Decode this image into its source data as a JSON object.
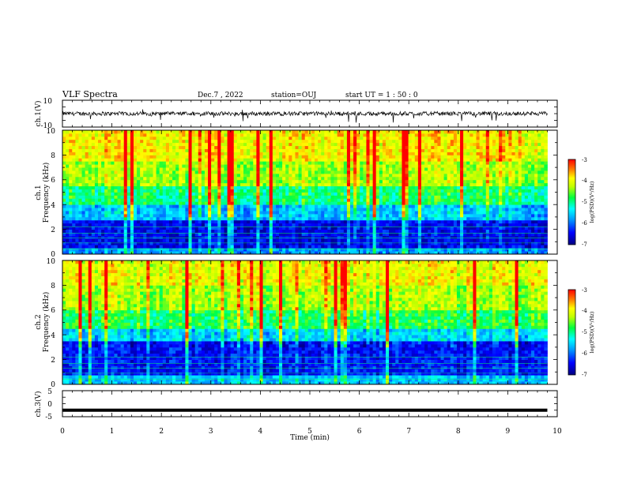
{
  "header": {
    "title": "VLF Spectra",
    "date": "Dec.7 , 2022",
    "station": "station=OUJ",
    "start_ut": "start  UT =   1 : 50 : 0"
  },
  "chart_data": [
    {
      "id": "ch1_waveform",
      "type": "line",
      "ylabel": "ch.1(V)",
      "ylim": [
        -10,
        10
      ],
      "yticks": [
        "10",
        "-10"
      ],
      "xlim": [
        0,
        10
      ],
      "data_extent_min": 9.8,
      "baseline": 0,
      "noise_amplitude": 1.5,
      "spike_amplitude": 6,
      "color": "#000000"
    },
    {
      "id": "ch1_spectrogram",
      "type": "heatmap",
      "ylabel_line1": "ch.1",
      "ylabel_line2": "Frequency (kHz)",
      "ylim": [
        0,
        10
      ],
      "yticks": [
        "0",
        "2",
        "4",
        "6",
        "8",
        "10"
      ],
      "xlim": [
        0,
        10
      ],
      "data_extent_min": 9.8,
      "colorbar": {
        "label": "log(PSD)(V²/Hz)",
        "range": [
          -7,
          -3
        ],
        "ticks": [
          "-3",
          "-4",
          "-5",
          "-6",
          "-7"
        ]
      },
      "bands": [
        {
          "freq_khz": [
            0,
            0.5
          ],
          "log_psd": -5.8
        },
        {
          "freq_khz": [
            0.5,
            2.8
          ],
          "log_psd": -6.5
        },
        {
          "freq_khz": [
            2.8,
            4.0
          ],
          "log_psd": -5.6
        },
        {
          "freq_khz": [
            4.0,
            5.5
          ],
          "log_psd": -4.9
        },
        {
          "freq_khz": [
            5.5,
            7.5
          ],
          "log_psd": -4.3
        },
        {
          "freq_khz": [
            7.5,
            10
          ],
          "log_psd": -3.9
        }
      ]
    },
    {
      "id": "ch2_spectrogram",
      "type": "heatmap",
      "ylabel_line1": "ch.2",
      "ylabel_line2": "Frequency (kHz)",
      "ylim": [
        0,
        10
      ],
      "yticks": [
        "0",
        "2",
        "4",
        "6",
        "8",
        "10"
      ],
      "xlim": [
        0,
        10
      ],
      "data_extent_min": 9.8,
      "colorbar": {
        "label": "log(PSD)(V²/Hz)",
        "range": [
          -7,
          -3
        ],
        "ticks": [
          "-3",
          "-4",
          "-5",
          "-6",
          "-7"
        ]
      },
      "bands": [
        {
          "freq_khz": [
            0,
            0.8
          ],
          "log_psd": -5.6
        },
        {
          "freq_khz": [
            0.8,
            3.6
          ],
          "log_psd": -6.4
        },
        {
          "freq_khz": [
            3.6,
            4.6
          ],
          "log_psd": -5.5
        },
        {
          "freq_khz": [
            4.6,
            6.0
          ],
          "log_psd": -4.8
        },
        {
          "freq_khz": [
            6.0,
            8.0
          ],
          "log_psd": -4.3
        },
        {
          "freq_khz": [
            8.0,
            10
          ],
          "log_psd": -4.0
        }
      ]
    },
    {
      "id": "ch3_waveform",
      "type": "line",
      "ylabel": "ch.3(V)",
      "ylim": [
        -5,
        5
      ],
      "yticks": [
        "5",
        "0",
        "-5"
      ],
      "xlim": [
        0,
        10
      ],
      "data_extent_min": 9.8,
      "baseline": -2.5,
      "color": "#000000"
    }
  ],
  "xaxis": {
    "label": "Time (min)",
    "ticks": [
      "0",
      "1",
      "2",
      "3",
      "4",
      "5",
      "6",
      "7",
      "8",
      "9",
      "10"
    ]
  }
}
